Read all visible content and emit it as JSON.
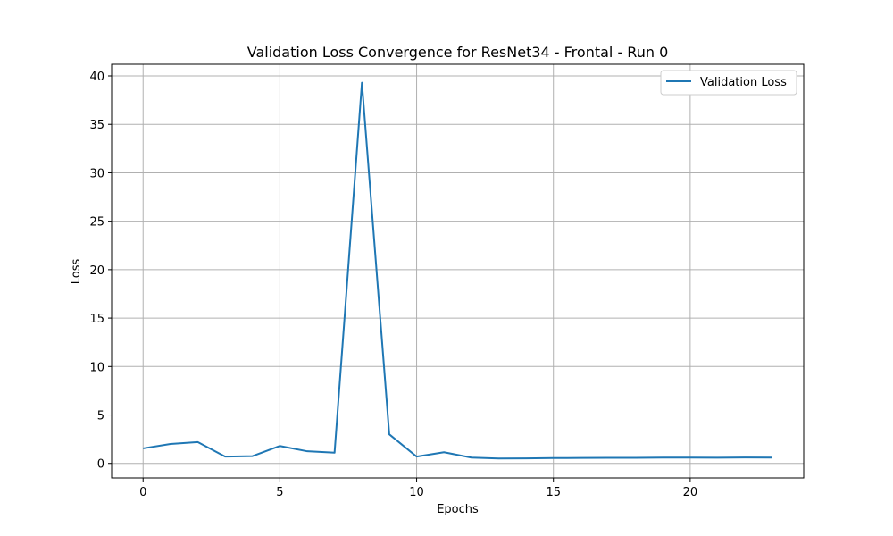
{
  "chart_data": {
    "type": "line",
    "title": "Validation Loss Convergence for ResNet34 - Frontal - Run 0",
    "xlabel": "Epochs",
    "ylabel": "Loss",
    "xlim": [
      -1.15,
      24.15
    ],
    "ylim": [
      -1.5,
      41.2
    ],
    "xticks": [
      0,
      5,
      10,
      15,
      20
    ],
    "yticks": [
      0,
      5,
      10,
      15,
      20,
      25,
      30,
      35,
      40
    ],
    "grid": true,
    "legend_position": "top-right",
    "series": [
      {
        "name": "Validation Loss",
        "color": "#1f77b4",
        "x": [
          0,
          1,
          2,
          3,
          4,
          5,
          6,
          7,
          8,
          9,
          10,
          11,
          12,
          13,
          14,
          15,
          16,
          17,
          18,
          19,
          20,
          21,
          22,
          23
        ],
        "y": [
          1.55,
          2.0,
          2.2,
          0.7,
          0.75,
          1.8,
          1.25,
          1.1,
          39.3,
          3.0,
          0.7,
          1.15,
          0.6,
          0.5,
          0.52,
          0.55,
          0.56,
          0.57,
          0.58,
          0.6,
          0.6,
          0.59,
          0.61,
          0.6
        ]
      }
    ]
  }
}
